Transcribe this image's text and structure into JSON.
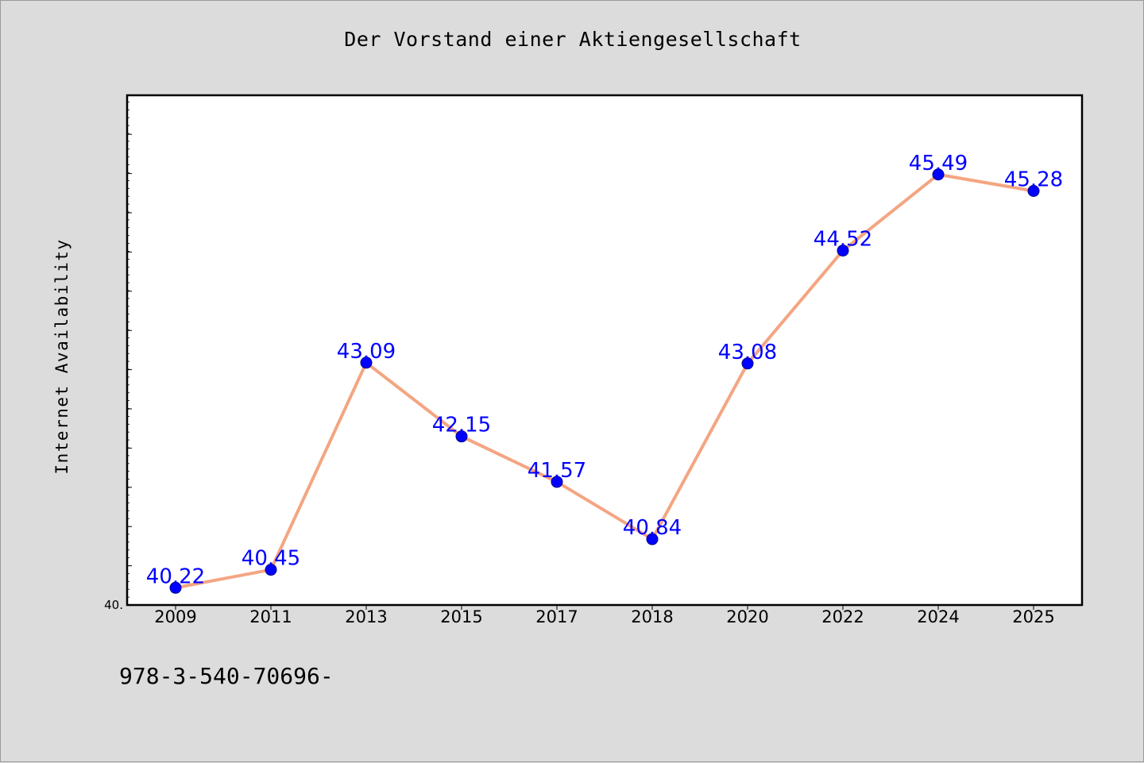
{
  "chart_data": {
    "type": "line",
    "title": "Der Vorstand einer Aktiengesellschaft",
    "xlabel": "",
    "ylabel": "Internet Availability",
    "categories": [
      "2009",
      "2011",
      "2013",
      "2015",
      "2017",
      "2018",
      "2020",
      "2022",
      "2024",
      "2025"
    ],
    "values": [
      40.22,
      40.45,
      43.09,
      42.15,
      41.57,
      40.84,
      43.08,
      44.52,
      45.49,
      45.28
    ],
    "data_labels": [
      "40.22",
      "40.45",
      "43.09",
      "42.15",
      "41.57",
      "40.84",
      "43.08",
      "44.52",
      "45.49",
      "45.28"
    ],
    "y_tick_label": "40.",
    "ylim": [
      40.0,
      46.5
    ],
    "grid": false,
    "legend": "none",
    "colors": {
      "line": "#f4a582",
      "marker": "#0000ff",
      "marker_edge": "#00008b",
      "label": "#0000ff"
    }
  },
  "footer": {
    "text": "978-3-540-70696-"
  }
}
